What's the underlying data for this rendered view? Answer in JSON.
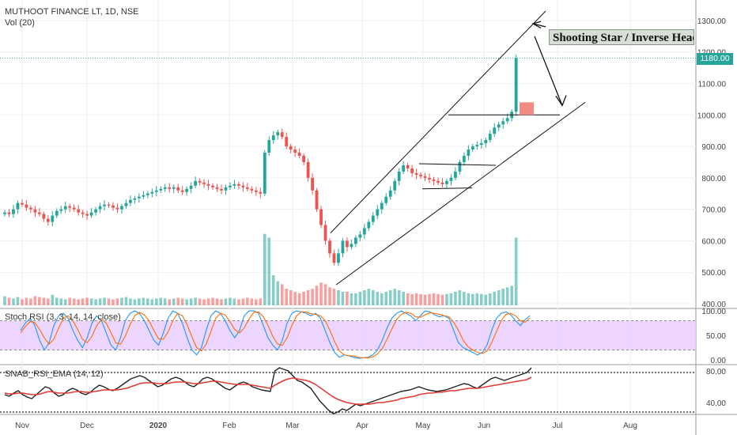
{
  "header": {
    "symbol": "MUTHOOT FINANCE LT, 1D, NSE",
    "volume_label": "Vol (20)"
  },
  "price_badge": "1180.00",
  "annotation": "Shooting Star / Inverse Head",
  "indicators": {
    "stoch_label": "Stoch RSI (3, 3, 14, 14, close)",
    "snab_label": "SNAB_RSI_EMA (14, 12)"
  },
  "colors": {
    "up": "#26a69a",
    "down": "#ef5350",
    "stoch_band": "#e6c8ff",
    "k_line": "#2196f3",
    "d_line": "#ff6d00",
    "rsi_line": "#222222",
    "ema_line": "#e53935",
    "price_line": "#26a69a"
  },
  "chart_data": [
    {
      "type": "candlestick",
      "title": "MUTHOOT FINANCE LT, 1D, NSE",
      "x_ticks": [
        "Nov",
        "Dec",
        "2020",
        "Feb",
        "Mar",
        "Apr",
        "May",
        "Jun",
        "Jul",
        "Aug"
      ],
      "y_ticks": [
        400,
        500,
        600,
        700,
        800,
        900,
        1000,
        1100,
        1200,
        1300
      ],
      "ylim": [
        390,
        1340
      ],
      "last_price": 1180,
      "closes": [
        690,
        685,
        700,
        720,
        715,
        705,
        700,
        690,
        685,
        670,
        660,
        680,
        695,
        700,
        710,
        705,
        700,
        690,
        685,
        680,
        690,
        700,
        710,
        715,
        712,
        705,
        700,
        710,
        720,
        730,
        735,
        740,
        745,
        750,
        755,
        760,
        765,
        770,
        765,
        770,
        760,
        755,
        765,
        775,
        790,
        785,
        780,
        775,
        770,
        765,
        760,
        770,
        775,
        780,
        775,
        770,
        765,
        760,
        755,
        750,
        880,
        920,
        935,
        945,
        930,
        900,
        890,
        880,
        870,
        850,
        800,
        760,
        700,
        650,
        600,
        560,
        530,
        560,
        600,
        580,
        590,
        610,
        620,
        640,
        660,
        680,
        700,
        720,
        740,
        760,
        790,
        820,
        840,
        830,
        815,
        810,
        805,
        800,
        795,
        790,
        785,
        780,
        790,
        800,
        820,
        850,
        870,
        890,
        900,
        905,
        910,
        920,
        940,
        960,
        970,
        980,
        990,
        1010,
        1180
      ],
      "annotations": [
        "Shooting Star / Inverse Head"
      ]
    },
    {
      "type": "bar",
      "name": "Vol (20)",
      "values": [
        12,
        10,
        9,
        11,
        8,
        10,
        9,
        12,
        11,
        10,
        9,
        14,
        10,
        9,
        8,
        10,
        9,
        8,
        9,
        10,
        9,
        8,
        9,
        10,
        9,
        8,
        9,
        10,
        11,
        9,
        8,
        9,
        10,
        9,
        8,
        9,
        10,
        9,
        8,
        9,
        10,
        9,
        8,
        9,
        10,
        9,
        8,
        9,
        10,
        9,
        8,
        9,
        10,
        9,
        8,
        9,
        10,
        9,
        8,
        9,
        95,
        90,
        40,
        32,
        28,
        22,
        20,
        18,
        16,
        18,
        20,
        22,
        26,
        30,
        28,
        24,
        22,
        20,
        18,
        18,
        16,
        16,
        18,
        20,
        22,
        20,
        18,
        16,
        18,
        20,
        22,
        20,
        18,
        16,
        15,
        16,
        15,
        14,
        15,
        16,
        15,
        14,
        15,
        16,
        18,
        20,
        18,
        16,
        15,
        16,
        15,
        14,
        16,
        18,
        20,
        22,
        24,
        26,
        90
      ]
    },
    {
      "type": "line",
      "name": "Stoch RSI (3, 3, 14, 14, close)",
      "y_ticks": [
        0,
        50,
        100
      ],
      "ylim": [
        -5,
        105
      ],
      "bands": [
        20,
        80
      ],
      "series": [
        {
          "name": "K",
          "values": [
            60,
            75,
            85,
            70,
            40,
            20,
            35,
            70,
            90,
            95,
            85,
            60,
            40,
            25,
            45,
            75,
            90,
            80,
            55,
            30,
            20,
            45,
            80,
            95,
            100,
            95,
            80,
            60,
            40,
            30,
            55,
            85,
            100,
            95,
            75,
            45,
            20,
            10,
            25,
            60,
            90,
            100,
            95,
            80,
            60,
            45,
            60,
            90,
            100,
            100,
            95,
            70,
            45,
            30,
            20,
            40,
            75,
            95,
            100,
            98,
            95,
            90,
            95,
            85,
            60,
            35,
            15,
            5,
            10,
            8,
            5,
            3,
            4,
            5,
            10,
            20,
            40,
            65,
            85,
            95,
            100,
            95,
            90,
            80,
            90,
            100,
            98,
            92,
            88,
            90,
            85,
            60,
            35,
            25,
            20,
            15,
            10,
            15,
            30,
            60,
            85,
            95,
            98,
            92,
            80,
            70,
            82,
            90
          ]
        },
        {
          "name": "D",
          "values": [
            55,
            68,
            78,
            76,
            62,
            45,
            32,
            42,
            65,
            85,
            90,
            80,
            62,
            42,
            35,
            48,
            70,
            82,
            75,
            55,
            35,
            32,
            48,
            72,
            90,
            97,
            92,
            80,
            60,
            43,
            42,
            57,
            80,
            95,
            90,
            72,
            47,
            25,
            18,
            32,
            58,
            85,
            95,
            92,
            78,
            62,
            55,
            65,
            83,
            97,
            98,
            88,
            70,
            48,
            32,
            30,
            45,
            70,
            90,
            98,
            98,
            94,
            93,
            90,
            80,
            60,
            37,
            18,
            10,
            8,
            8,
            5,
            4,
            4,
            6,
            12,
            23,
            42,
            63,
            82,
            93,
            97,
            95,
            88,
            87,
            92,
            96,
            95,
            93,
            90,
            88,
            77,
            60,
            40,
            27,
            20,
            15,
            13,
            18,
            35,
            58,
            80,
            93,
            95,
            90,
            80,
            77,
            85
          ]
        }
      ]
    },
    {
      "type": "line",
      "name": "SNAB_RSI_EMA (14, 12)",
      "y_ticks": [
        40,
        80
      ],
      "ylim": [
        25,
        88
      ],
      "reference_lines": [
        28,
        78
      ],
      "series": [
        {
          "name": "RSI",
          "values": [
            50,
            48,
            52,
            55,
            50,
            47,
            45,
            50,
            55,
            60,
            58,
            52,
            48,
            50,
            55,
            58,
            56,
            52,
            50,
            53,
            58,
            62,
            60,
            57,
            55,
            58,
            62,
            66,
            70,
            72,
            74,
            72,
            68,
            64,
            60,
            62,
            66,
            70,
            72,
            70,
            66,
            62,
            60,
            64,
            70,
            72,
            70,
            66,
            62,
            58,
            56,
            60,
            64,
            66,
            64,
            60,
            58,
            56,
            55,
            54,
            80,
            84,
            82,
            80,
            74,
            68,
            66,
            62,
            58,
            50,
            42,
            36,
            30,
            26,
            28,
            32,
            30,
            34,
            38,
            36,
            38,
            40,
            42,
            44,
            46,
            48,
            50,
            52,
            54,
            55,
            56,
            58,
            60,
            58,
            56,
            55,
            54,
            55,
            56,
            58,
            60,
            62,
            64,
            63,
            60,
            58,
            62,
            66,
            70,
            72,
            70,
            68,
            70,
            72,
            74,
            76,
            78,
            84
          ]
        },
        {
          "name": "EMA",
          "values": [
            52,
            51,
            51,
            52,
            52,
            51,
            50,
            50,
            51,
            53,
            54,
            53,
            52,
            52,
            52,
            53,
            54,
            54,
            53,
            53,
            54,
            55,
            56,
            56,
            56,
            56,
            57,
            58,
            60,
            62,
            64,
            65,
            65,
            65,
            64,
            64,
            64,
            65,
            66,
            66,
            66,
            65,
            64,
            64,
            65,
            66,
            67,
            67,
            66,
            65,
            64,
            63,
            63,
            63,
            63,
            62,
            61,
            60,
            59,
            58,
            62,
            65,
            68,
            70,
            71,
            70,
            69,
            68,
            66,
            63,
            59,
            55,
            51,
            47,
            44,
            42,
            40,
            39,
            38,
            38,
            38,
            38,
            39,
            40,
            40,
            41,
            42,
            43,
            45,
            46,
            47,
            48,
            50,
            51,
            52,
            52,
            53,
            53,
            54,
            55,
            55,
            56,
            57,
            58,
            58,
            58,
            59,
            60,
            61,
            62,
            63,
            64,
            65,
            66,
            67,
            68,
            69,
            72
          ]
        }
      ]
    }
  ]
}
